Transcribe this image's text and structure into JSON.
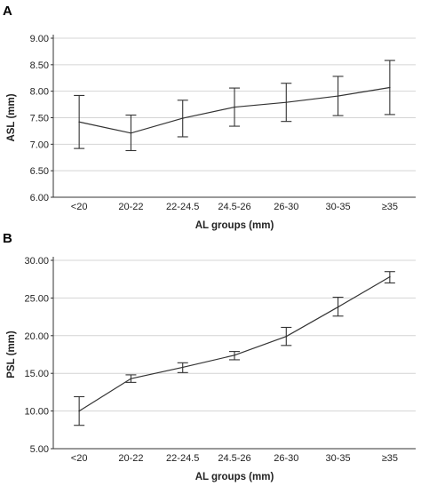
{
  "chart_data": [
    {
      "panel": "A",
      "type": "line",
      "categories": [
        "<20",
        "20-22",
        "22-24.5",
        "24.5-26",
        "26-30",
        "30-35",
        "≥35"
      ],
      "values": [
        7.42,
        7.21,
        7.49,
        7.7,
        7.79,
        7.91,
        8.07
      ],
      "error_low": [
        6.92,
        6.88,
        7.14,
        7.34,
        7.43,
        7.54,
        7.56
      ],
      "error_high": [
        7.92,
        7.55,
        7.83,
        8.06,
        8.15,
        8.28,
        8.58
      ],
      "xlabel": "AL groups (mm)",
      "ylabel": "ASL (mm)",
      "ylim": [
        6.0,
        9.0
      ],
      "yticks": [
        "6.00",
        "6.50",
        "7.00",
        "7.50",
        "8.00",
        "8.50",
        "9.00"
      ],
      "grid": true
    },
    {
      "panel": "B",
      "type": "line",
      "categories": [
        "<20",
        "20-22",
        "22-24.5",
        "24.5-26",
        "26-30",
        "30-35",
        "≥35"
      ],
      "values": [
        10.0,
        14.3,
        15.8,
        17.4,
        19.9,
        23.8,
        27.8
      ],
      "error_low": [
        8.1,
        13.8,
        15.1,
        16.8,
        18.7,
        22.6,
        27.0
      ],
      "error_high": [
        11.9,
        14.8,
        16.4,
        17.9,
        21.1,
        25.1,
        28.5
      ],
      "xlabel": "AL groups (mm)",
      "ylabel": "PSL (mm)",
      "ylim": [
        5.0,
        30.0
      ],
      "yticks": [
        "5.00",
        "10.00",
        "15.00",
        "20.00",
        "25.00",
        "30.00"
      ],
      "grid": true
    }
  ]
}
